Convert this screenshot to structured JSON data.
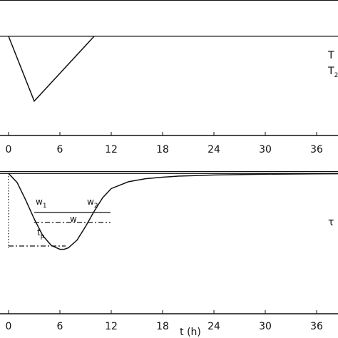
{
  "chart_data": [
    {
      "type": "line",
      "x": [
        0,
        3,
        10
      ],
      "series": [
        {
          "name": null,
          "color": "#111",
          "values": [
            0,
            -1,
            0
          ]
        }
      ],
      "baseline": 0,
      "xlim": [
        0,
        38.5
      ],
      "ylim": [
        -1.53,
        0.56
      ],
      "xticks": [
        0,
        6,
        12,
        18,
        24,
        30,
        36
      ],
      "right_labels": [
        {
          "text": "T",
          "sub": ""
        },
        {
          "text": "T",
          "sub": "2"
        }
      ]
    },
    {
      "type": "line",
      "x": [
        0,
        1,
        2,
        3,
        4,
        5,
        6,
        6.5,
        7,
        8,
        9,
        10,
        11,
        12,
        14,
        16,
        18,
        20,
        24,
        30,
        36,
        38.5
      ],
      "series": [
        {
          "name": null,
          "color": "#111",
          "values": [
            0,
            -0.12,
            -0.35,
            -0.6,
            -0.82,
            -0.95,
            -1.0,
            -1.0,
            -0.98,
            -0.88,
            -0.7,
            -0.5,
            -0.32,
            -0.2,
            -0.11,
            -0.07,
            -0.05,
            -0.035,
            -0.02,
            -0.01,
            -0.005,
            -0.004
          ]
        }
      ],
      "baseline": 0,
      "xlim": [
        0,
        38.5
      ],
      "ylim": [
        -1.85,
        0.03
      ],
      "xticks": [
        0,
        6,
        12,
        18,
        24,
        30,
        36
      ],
      "x_label": "t (h)",
      "right_labels": [
        {
          "text": "τ",
          "sub": ""
        }
      ],
      "annotations": {
        "w1": {
          "text": "w",
          "sub": "1"
        },
        "w2": {
          "text": "w",
          "sub": "2"
        },
        "w": {
          "text": "w",
          "sub": ""
        },
        "tp": {
          "text": "t",
          "sub": "p"
        }
      }
    }
  ]
}
